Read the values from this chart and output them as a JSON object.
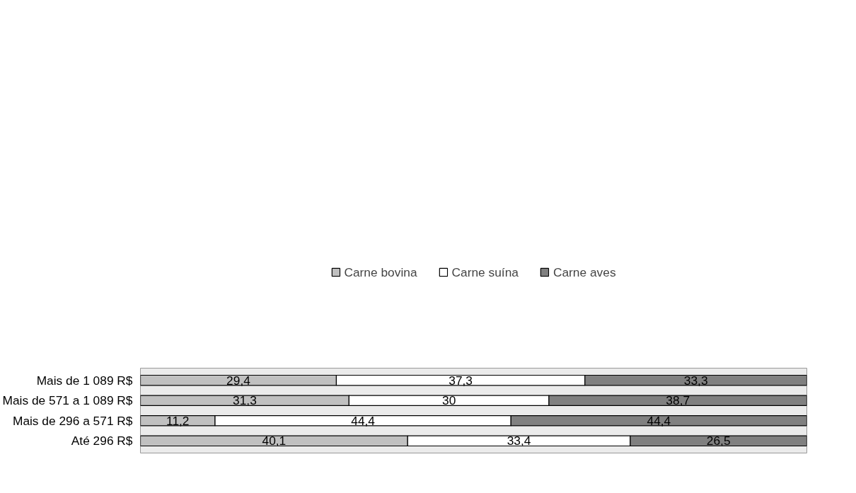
{
  "chart_data": {
    "type": "bar",
    "orientation": "horizontal",
    "stacked": true,
    "legend": "top",
    "grid": false,
    "categories": [
      "Mais de 1 089 R$",
      "Mais de 571 a 1 089 R$",
      "Mais de 296 a 571 R$",
      "Até 296 R$"
    ],
    "series": [
      {
        "name": "Carne bovina",
        "color": "#c0c0c0",
        "values": [
          29.4,
          31.3,
          11.2,
          40.1
        ],
        "value_labels": [
          "29,4",
          "31,3",
          "11,2",
          "40,1"
        ]
      },
      {
        "name": "Carne suína",
        "color": "#ffffff",
        "values": [
          37.3,
          30,
          44.4,
          33.4
        ],
        "value_labels": [
          "37,3",
          "30",
          "44,4",
          "33,4"
        ]
      },
      {
        "name": "Carne aves",
        "color": "#808080",
        "values": [
          33.3,
          38.7,
          44.4,
          26.5
        ],
        "value_labels": [
          "33,3",
          "38,7",
          "44,4",
          "26,5"
        ]
      }
    ]
  }
}
